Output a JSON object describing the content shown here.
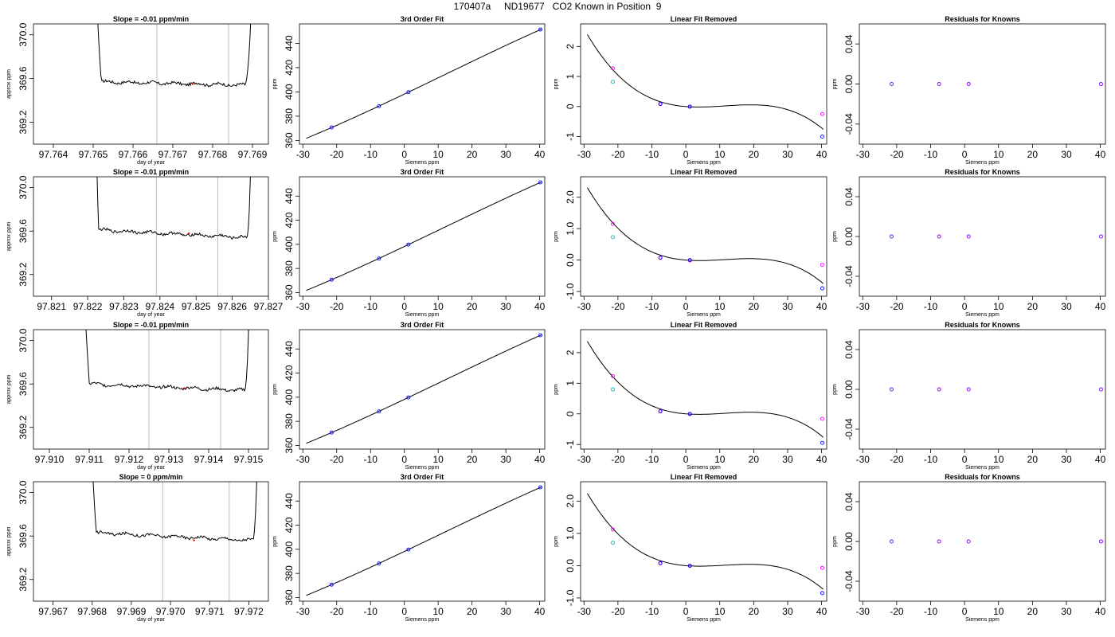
{
  "page_title": "170407a     ND19677   CO2 Known in Position  9",
  "chart_data": [
    {
      "row": 1,
      "type": "line",
      "title": "Slope =  -0.01  ppm/min",
      "xlabel": "day of year",
      "ylabel": "approx ppm",
      "x_ticks": [
        "97.764",
        "97.765",
        "97.766",
        "97.767",
        "97.768",
        "97.769"
      ],
      "y_ticks": [
        "369.2",
        "369.6",
        "370.0"
      ],
      "xlim": [
        97.7635,
        97.7694
      ],
      "ylim": [
        369.0,
        370.1
      ],
      "vlines": [
        97.7666,
        97.7684
      ],
      "trace": {
        "x_start": 97.765,
        "x_end": 97.7691,
        "plateau_start": 97.7652,
        "plateau_end": 97.7688,
        "level_start": 369.57,
        "level_end": 369.54
      },
      "marker": {
        "x": 97.7675,
        "y": 369.55
      }
    },
    {
      "row": 1,
      "type": "scatter",
      "title": "3rd Order Fit",
      "xlabel": "Siemens ppm",
      "ylabel": "ppm",
      "x_ticks": [
        "-30",
        "-20",
        "-10",
        "0",
        "10",
        "20",
        "30",
        "40"
      ],
      "y_ticks": [
        "360",
        "380",
        "400",
        "420",
        "440"
      ],
      "xlim": [
        -31,
        41.5
      ],
      "ylim": [
        357,
        456
      ],
      "fit_x_range": [
        -29,
        40.5
      ],
      "curve": {
        "a": 398.2,
        "b": 1.3296,
        "c": 0.00138,
        "d": -4.02e-05
      },
      "points": [
        {
          "x": -21.5,
          "y": 370.7
        },
        {
          "x": -7.5,
          "y": 388.2
        },
        {
          "x": 1.2,
          "y": 399.8
        },
        {
          "x": 40.2,
          "y": 451.4
        }
      ]
    },
    {
      "row": 1,
      "type": "scatter",
      "title": "Linear Fit Removed",
      "xlabel": "Siemens ppm",
      "ylabel": "ppm",
      "x_ticks": [
        "-30",
        "-20",
        "-10",
        "0",
        "10",
        "20",
        "30",
        "40"
      ],
      "y_ticks": [
        "-1",
        "0",
        "1",
        "2"
      ],
      "xlim": [
        -31,
        41.5
      ],
      "ylim": [
        -1.25,
        2.75
      ],
      "fit_x_range": [
        -29,
        40.5
      ],
      "curve": {
        "a": 0,
        "b": -0.0087,
        "c": 0.00138,
        "d": -4.02e-05
      },
      "points_blue": [
        {
          "x": -7.5,
          "y": 0.09
        },
        {
          "x": 1.2,
          "y": 0.0
        },
        {
          "x": 40.2,
          "y": -1.0
        }
      ],
      "points_magenta": [
        {
          "x": -21.5,
          "y": 1.27
        },
        {
          "x": -7.5,
          "y": 0.08
        },
        {
          "x": 1.2,
          "y": -0.01
        },
        {
          "x": 40.2,
          "y": -0.25
        }
      ],
      "points_cyan": [
        {
          "x": -21.5,
          "y": 0.82
        }
      ]
    },
    {
      "row": 1,
      "type": "scatter",
      "title": "Residuals for Knowns",
      "xlabel": "Siemens ppm",
      "ylabel": "ppm",
      "x_ticks": [
        "-30",
        "-20",
        "-10",
        "0",
        "10",
        "20",
        "30",
        "40"
      ],
      "y_ticks": [
        "-0.04",
        "0.00",
        "0.04"
      ],
      "xlim": [
        -31,
        41.5
      ],
      "ylim": [
        -0.06,
        0.06
      ],
      "points": [
        {
          "x": -21.5,
          "y": 0
        },
        {
          "x": -7.5,
          "y": 0
        },
        {
          "x": 1.2,
          "y": 0
        },
        {
          "x": 40.2,
          "y": 0
        }
      ]
    },
    {
      "row": 2,
      "type": "line",
      "title": "Slope =  -0.01  ppm/min",
      "xlabel": "day of year",
      "ylabel": "approx ppm",
      "x_ticks": [
        "97.821",
        "97.822",
        "97.823",
        "97.824",
        "97.825",
        "97.826",
        "97.827"
      ],
      "y_ticks": [
        "369.2",
        "369.6",
        "370.0"
      ],
      "xlim": [
        97.8205,
        97.827
      ],
      "ylim": [
        369.0,
        370.1
      ],
      "vlines": [
        97.8239,
        97.8256
      ],
      "trace": {
        "x_start": 97.8222,
        "x_end": 97.8266,
        "plateau_start": 97.8223,
        "plateau_end": 97.8264,
        "level_start": 369.61,
        "level_end": 369.54
      },
      "marker": {
        "x": 97.8248,
        "y": 369.58
      }
    },
    {
      "row": 2,
      "type": "scatter",
      "title": "3rd Order Fit",
      "xlabel": "Siemens ppm",
      "ylabel": "ppm",
      "x_ticks": [
        "-30",
        "-20",
        "-10",
        "0",
        "10",
        "20",
        "30",
        "40"
      ],
      "y_ticks": [
        "360",
        "380",
        "400",
        "420",
        "440"
      ],
      "xlim": [
        -31,
        41.5
      ],
      "ylim": [
        357,
        456
      ],
      "fit_x_range": [
        -29,
        40.5
      ],
      "curve": {
        "a": 398.2,
        "b": 1.3296,
        "c": 0.00138,
        "d": -4.02e-05
      },
      "points": [
        {
          "x": -21.5,
          "y": 370.7
        },
        {
          "x": -7.5,
          "y": 388.2
        },
        {
          "x": 1.2,
          "y": 399.8
        },
        {
          "x": 40.2,
          "y": 451.4
        }
      ]
    },
    {
      "row": 2,
      "type": "scatter",
      "title": "Linear Fit Removed",
      "xlabel": "Siemens ppm",
      "ylabel": "ppm",
      "x_ticks": [
        "-30",
        "-20",
        "-10",
        "0",
        "10",
        "20",
        "30",
        "40"
      ],
      "y_ticks": [
        "-1.0",
        "0.0",
        "1.0",
        "2.0"
      ],
      "xlim": [
        -31,
        41.5
      ],
      "ylim": [
        -1.15,
        2.65
      ],
      "fit_x_range": [
        -29,
        40.5
      ],
      "curve": {
        "a": 0,
        "b": -0.0088,
        "c": 0.00132,
        "d": -3.85e-05
      },
      "points_blue": [
        {
          "x": -7.5,
          "y": 0.08
        },
        {
          "x": 1.2,
          "y": 0.0
        },
        {
          "x": 40.2,
          "y": -0.9
        }
      ],
      "points_magenta": [
        {
          "x": -21.5,
          "y": 1.15
        },
        {
          "x": -7.5,
          "y": 0.07
        },
        {
          "x": 1.2,
          "y": -0.01
        },
        {
          "x": 40.2,
          "y": -0.15
        }
      ],
      "points_cyan": [
        {
          "x": -21.5,
          "y": 0.73
        }
      ]
    },
    {
      "row": 2,
      "type": "scatter",
      "title": "Residuals for Knowns",
      "xlabel": "Siemens ppm",
      "ylabel": "ppm",
      "x_ticks": [
        "-30",
        "-20",
        "-10",
        "0",
        "10",
        "20",
        "30",
        "40"
      ],
      "y_ticks": [
        "-0.04",
        "0.00",
        "0.04"
      ],
      "xlim": [
        -31,
        41.5
      ],
      "ylim": [
        -0.06,
        0.06
      ],
      "points": [
        {
          "x": -21.5,
          "y": 0
        },
        {
          "x": -7.5,
          "y": 0
        },
        {
          "x": 1.2,
          "y": 0
        },
        {
          "x": 40.2,
          "y": 0
        }
      ]
    },
    {
      "row": 3,
      "type": "line",
      "title": "Slope =  -0.01  ppm/min",
      "xlabel": "day of year",
      "ylabel": "approx ppm",
      "x_ticks": [
        "97.910",
        "97.911",
        "97.912",
        "97.913",
        "97.914",
        "97.915"
      ],
      "y_ticks": [
        "369.2",
        "369.6",
        "370.0"
      ],
      "xlim": [
        97.9096,
        97.9155
      ],
      "ylim": [
        369.0,
        370.1
      ],
      "vlines": [
        97.9125,
        97.9143
      ],
      "trace": {
        "x_start": 97.9108,
        "x_end": 97.9151,
        "plateau_start": 97.911,
        "plateau_end": 97.9149,
        "level_start": 369.6,
        "level_end": 369.54
      },
      "marker": {
        "x": 97.9134,
        "y": 369.56
      }
    },
    {
      "row": 3,
      "type": "scatter",
      "title": "3rd Order Fit",
      "xlabel": "Siemens ppm",
      "ylabel": "ppm",
      "x_ticks": [
        "-30",
        "-20",
        "-10",
        "0",
        "10",
        "20",
        "30",
        "40"
      ],
      "y_ticks": [
        "360",
        "380",
        "400",
        "420",
        "440"
      ],
      "xlim": [
        -31,
        41.5
      ],
      "ylim": [
        357,
        456
      ],
      "fit_x_range": [
        -29,
        40.5
      ],
      "curve": {
        "a": 398.2,
        "b": 1.3296,
        "c": 0.00138,
        "d": -4.02e-05
      },
      "points": [
        {
          "x": -21.5,
          "y": 370.7
        },
        {
          "x": -7.5,
          "y": 388.2
        },
        {
          "x": 1.2,
          "y": 399.8
        },
        {
          "x": 40.2,
          "y": 451.4
        }
      ]
    },
    {
      "row": 3,
      "type": "scatter",
      "title": "Linear Fit Removed",
      "xlabel": "Siemens ppm",
      "ylabel": "ppm",
      "x_ticks": [
        "-30",
        "-20",
        "-10",
        "0",
        "10",
        "20",
        "30",
        "40"
      ],
      "y_ticks": [
        "-1",
        "0",
        "1",
        "2"
      ],
      "xlim": [
        -31,
        41.5
      ],
      "ylim": [
        -1.15,
        2.75
      ],
      "fit_x_range": [
        -29,
        40.5
      ],
      "curve": {
        "a": 0,
        "b": -0.0087,
        "c": 0.00136,
        "d": -3.98e-05
      },
      "points_blue": [
        {
          "x": -7.5,
          "y": 0.09
        },
        {
          "x": 1.2,
          "y": 0.0
        },
        {
          "x": 40.2,
          "y": -0.95
        }
      ],
      "points_magenta": [
        {
          "x": -21.5,
          "y": 1.23
        },
        {
          "x": -7.5,
          "y": 0.08
        },
        {
          "x": 1.2,
          "y": -0.01
        },
        {
          "x": 40.2,
          "y": -0.16
        }
      ],
      "points_cyan": [
        {
          "x": -21.5,
          "y": 0.8
        }
      ]
    },
    {
      "row": 3,
      "type": "scatter",
      "title": "Residuals for Knowns",
      "xlabel": "Siemens ppm",
      "ylabel": "ppm",
      "x_ticks": [
        "-30",
        "-20",
        "-10",
        "0",
        "10",
        "20",
        "30",
        "40"
      ],
      "y_ticks": [
        "-0.04",
        "0.00",
        "0.04"
      ],
      "xlim": [
        -31,
        41.5
      ],
      "ylim": [
        -0.06,
        0.06
      ],
      "points": [
        {
          "x": -21.5,
          "y": 0
        },
        {
          "x": -7.5,
          "y": 0
        },
        {
          "x": 1.2,
          "y": 0
        },
        {
          "x": 40.2,
          "y": 0
        }
      ]
    },
    {
      "row": 4,
      "type": "line",
      "title": "Slope =  0  ppm/min",
      "xlabel": "day of year",
      "ylabel": "approx ppm",
      "x_ticks": [
        "97.967",
        "97.968",
        "97.969",
        "97.970",
        "97.971",
        "97.972"
      ],
      "y_ticks": [
        "369.2",
        "369.6",
        "370.0"
      ],
      "xlim": [
        97.9665,
        97.9725
      ],
      "ylim": [
        369.0,
        370.1
      ],
      "vlines": [
        97.9698,
        97.9715
      ],
      "trace": {
        "x_start": 97.9679,
        "x_end": 97.9723,
        "plateau_start": 97.9681,
        "plateau_end": 97.9721,
        "level_start": 369.63,
        "level_end": 369.56
      },
      "marker": {
        "x": 97.9706,
        "y": 369.56
      }
    },
    {
      "row": 4,
      "type": "scatter",
      "title": "3rd Order Fit",
      "xlabel": "Siemens ppm",
      "ylabel": "ppm",
      "x_ticks": [
        "-30",
        "-20",
        "-10",
        "0",
        "10",
        "20",
        "30",
        "40"
      ],
      "y_ticks": [
        "360",
        "380",
        "400",
        "420",
        "440"
      ],
      "xlim": [
        -31,
        41.5
      ],
      "ylim": [
        357,
        456
      ],
      "fit_x_range": [
        -29,
        40.5
      ],
      "curve": {
        "a": 398.2,
        "b": 1.3296,
        "c": 0.00138,
        "d": -4.02e-05
      },
      "points": [
        {
          "x": -21.5,
          "y": 370.7
        },
        {
          "x": -7.5,
          "y": 388.2
        },
        {
          "x": 1.2,
          "y": 399.8
        },
        {
          "x": 40.2,
          "y": 451.4
        }
      ]
    },
    {
      "row": 4,
      "type": "scatter",
      "title": "Linear Fit Removed",
      "xlabel": "Siemens ppm",
      "ylabel": "ppm",
      "x_ticks": [
        "-30",
        "-20",
        "-10",
        "0",
        "10",
        "20",
        "30",
        "40"
      ],
      "y_ticks": [
        "-1.0",
        "0.0",
        "1.0",
        "2.0"
      ],
      "xlim": [
        -31,
        41.5
      ],
      "ylim": [
        -1.1,
        2.6
      ],
      "fit_x_range": [
        -29,
        40.5
      ],
      "curve": {
        "a": 0,
        "b": -0.0086,
        "c": 0.00128,
        "d": -3.74e-05
      },
      "points_blue": [
        {
          "x": -7.5,
          "y": 0.08
        },
        {
          "x": 1.2,
          "y": 0.0
        },
        {
          "x": 40.2,
          "y": -0.85
        }
      ],
      "points_magenta": [
        {
          "x": -21.5,
          "y": 1.12
        },
        {
          "x": -7.5,
          "y": 0.07
        },
        {
          "x": 1.2,
          "y": -0.01
        },
        {
          "x": 40.2,
          "y": -0.07
        }
      ],
      "points_cyan": [
        {
          "x": -21.5,
          "y": 0.71
        }
      ]
    },
    {
      "row": 4,
      "type": "scatter",
      "title": "Residuals for Knowns",
      "xlabel": "Siemens ppm",
      "ylabel": "ppm",
      "x_ticks": [
        "-30",
        "-20",
        "-10",
        "0",
        "10",
        "20",
        "30",
        "40"
      ],
      "y_ticks": [
        "-0.04",
        "0.00",
        "0.04"
      ],
      "xlim": [
        -31,
        41.5
      ],
      "ylim": [
        -0.06,
        0.06
      ],
      "points": [
        {
          "x": -21.5,
          "y": 0
        },
        {
          "x": -7.5,
          "y": 0
        },
        {
          "x": 1.2,
          "y": 0
        },
        {
          "x": 40.2,
          "y": 0
        }
      ]
    }
  ],
  "colors": {
    "trace": "#000000",
    "vline": "#bebebe",
    "known_blue": "#0000ff",
    "known_magenta": "#ff00ff",
    "known_cyan": "#00bfbf",
    "residual": "#7f00ff",
    "marker_red": "#ff0000"
  }
}
